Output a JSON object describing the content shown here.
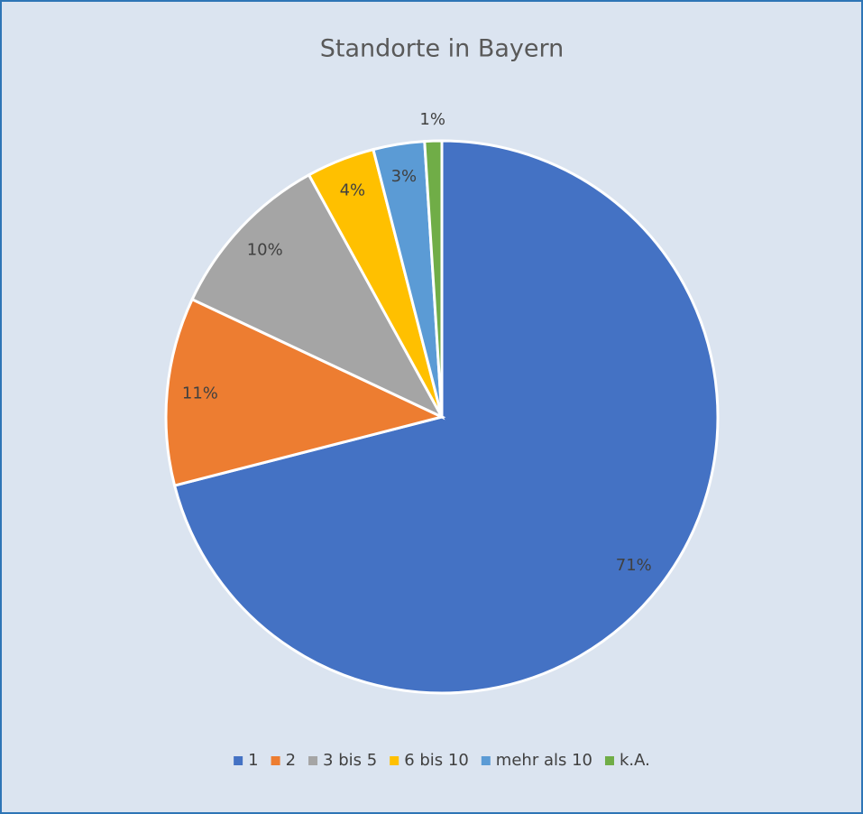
{
  "chart_data": {
    "type": "pie",
    "title": "Standorte in Bayern",
    "categories": [
      "1",
      "2",
      "3 bis 5",
      "6 bis 10",
      "mehr als 10",
      "k.A."
    ],
    "values": [
      71,
      11,
      10,
      4,
      3,
      1
    ],
    "value_labels": [
      "71%",
      "11%",
      "10%",
      "4%",
      "3%",
      "1%"
    ],
    "colors": [
      "#4472c4",
      "#ed7d31",
      "#a5a5a5",
      "#ffc000",
      "#5b9bd5",
      "#70ad47"
    ],
    "legend": "bottom"
  }
}
